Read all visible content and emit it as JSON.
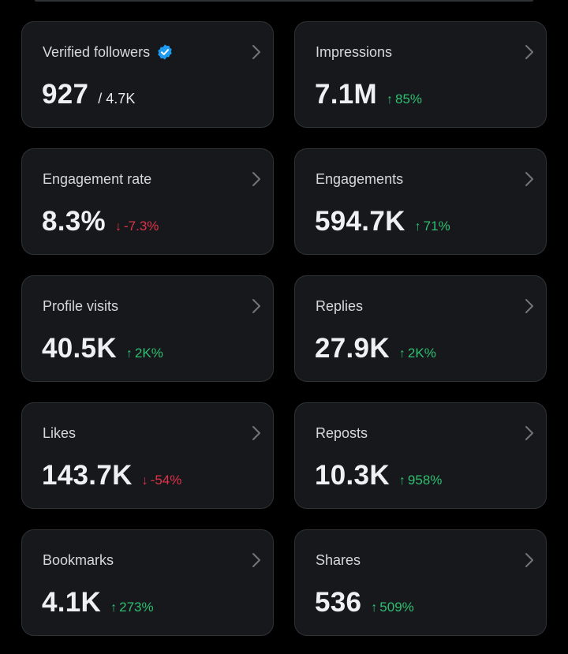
{
  "colors": {
    "background": "#000000",
    "card": "#16181c",
    "border": "#2f3336",
    "up": "#2fbf71",
    "down": "#e0334a",
    "verified": "#1d9bf0"
  },
  "metrics": [
    {
      "label": "Verified followers",
      "value": "927",
      "sub": "/ 4.7K",
      "verified_icon": "verified-badge-icon"
    },
    {
      "label": "Impressions",
      "value": "7.1M",
      "change": "85%",
      "direction": "up",
      "arrow": "↑"
    },
    {
      "label": "Engagement rate",
      "value": "8.3%",
      "change": "-7.3%",
      "direction": "down",
      "arrow": "↓"
    },
    {
      "label": "Engagements",
      "value": "594.7K",
      "change": "71%",
      "direction": "up",
      "arrow": "↑"
    },
    {
      "label": "Profile visits",
      "value": "40.5K",
      "change": "2K%",
      "direction": "up",
      "arrow": "↑"
    },
    {
      "label": "Replies",
      "value": "27.9K",
      "change": "2K%",
      "direction": "up",
      "arrow": "↑"
    },
    {
      "label": "Likes",
      "value": "143.7K",
      "change": "-54%",
      "direction": "down",
      "arrow": "↓"
    },
    {
      "label": "Reposts",
      "value": "10.3K",
      "change": "958%",
      "direction": "up",
      "arrow": "↑"
    },
    {
      "label": "Bookmarks",
      "value": "4.1K",
      "change": "273%",
      "direction": "up",
      "arrow": "↑"
    },
    {
      "label": "Shares",
      "value": "536",
      "change": "509%",
      "direction": "up",
      "arrow": "↑"
    }
  ]
}
